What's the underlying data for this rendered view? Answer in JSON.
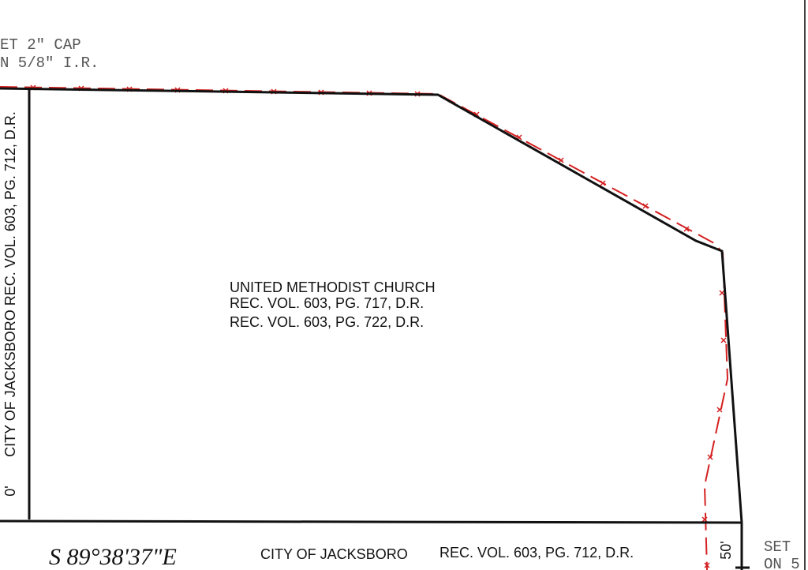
{
  "corner_note_top_left": {
    "line1": "ET 2\" CAP",
    "line2": "N 5/8\" I.R."
  },
  "left_boundary": {
    "distance": "0'",
    "label": "CITY OF JACKSBORO  REC. VOL. 603, PG. 712, D.R."
  },
  "parcel": {
    "owner": "UNITED METHODIST CHURCH",
    "record1": "REC. VOL. 603, PG. 717, D.R.",
    "record2": "REC. VOL. 603, PG. 722, D.R."
  },
  "bottom_boundary": {
    "bearing": "S 89°38'37\"E",
    "owner": "CITY OF JACKSBORO",
    "record": "REC. VOL. 603, PG. 712, D.R.",
    "width": "50'"
  },
  "corner_note_bottom_right": {
    "line1": "SET",
    "line2": "ON 5"
  }
}
